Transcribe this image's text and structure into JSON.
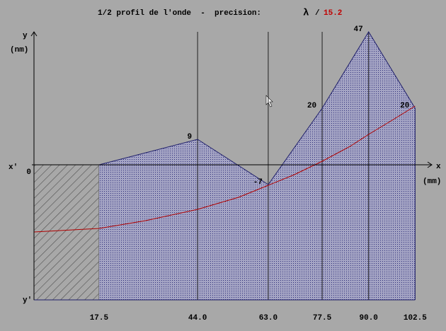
{
  "chart_data": {
    "type": "area",
    "title": "1/2 profil de l'onde  -  precision:",
    "title_symbol": "λ",
    "title_divider": "/",
    "precision": 15.2,
    "y_label": "y",
    "y_unit": "(nm)",
    "y_neg_label": "y'",
    "x_label": "x",
    "x_unit": "(mm)",
    "x_neg_label": "x'",
    "xlim": [
      0,
      107
    ],
    "ylim": [
      -47.75,
      47
    ],
    "xticks": [
      17.5,
      {
        "value": 44,
        "label": "44.0"
      },
      {
        "value": 63,
        "label": "63.0"
      },
      77.5,
      {
        "value": 90,
        "label": "90.0"
      },
      102.5
    ],
    "yticks": [
      0
    ],
    "profile": {
      "color": "#20206a",
      "x": [
        17.5,
        44,
        63,
        77.5,
        90,
        102.5
      ],
      "values": [
        0,
        9,
        -7,
        20,
        47,
        20
      ],
      "value_labels": [
        null,
        "9",
        "-7",
        "20",
        "47",
        "20"
      ]
    },
    "curve": {
      "color": "#b00000",
      "x": [
        0,
        17.5,
        30,
        44,
        55,
        63,
        70,
        77.5,
        85,
        90,
        96,
        102.5
      ],
      "values": [
        -23.75,
        -22.5,
        -19.75,
        -15.75,
        -11.5,
        -7.25,
        -3.5,
        1.25,
        6.5,
        10.75,
        15.5,
        20.75
      ]
    },
    "hatch_color": "#505050"
  }
}
